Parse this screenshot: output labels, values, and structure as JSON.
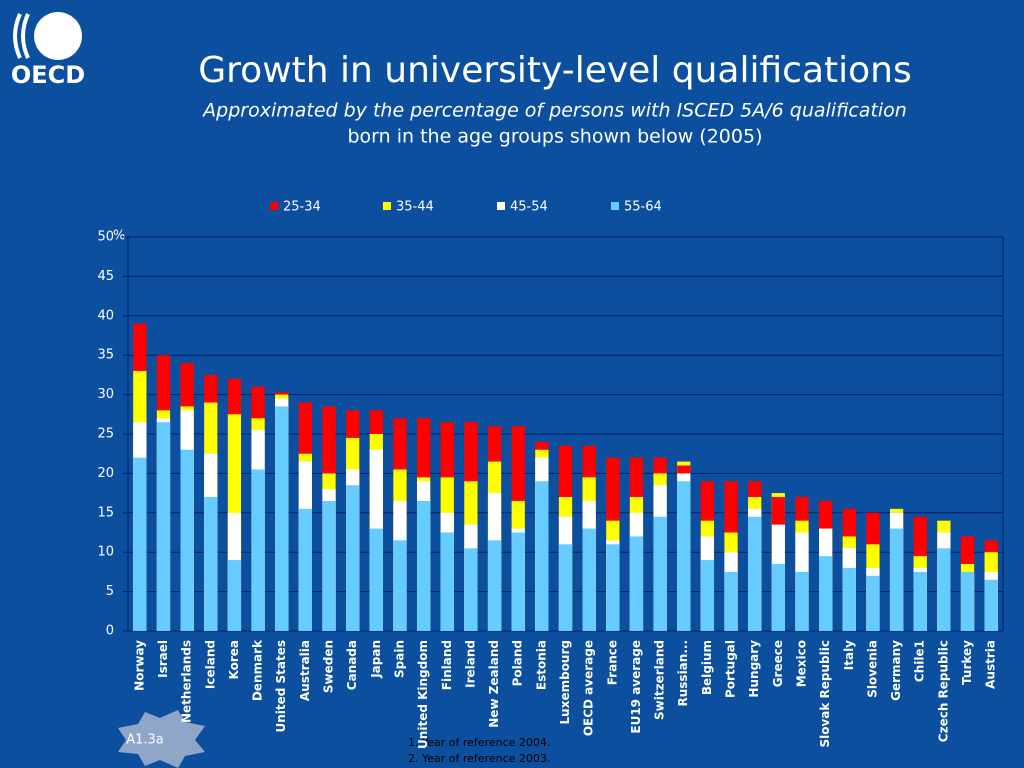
{
  "logo": "OECD",
  "badge": "A1.3a",
  "footnotes": [
    "1. Year of reference 2004.",
    "2. Year of reference 2003."
  ],
  "chart_data": {
    "type": "bar",
    "overlap": true,
    "title": "Growth in university-level qualifications",
    "subtitle": [
      "Approximated by the percentage of persons with ISCED 5A/6 qualification",
      "born in the age groups shown below (2005)"
    ],
    "y_unit": "%",
    "categories": [
      "Norway",
      "Israel",
      "Netherlands",
      "Iceland",
      "Korea",
      "Denmark",
      "United States",
      "Australia",
      "Sweden",
      "Canada",
      "Japan",
      "Spain",
      "United Kingdom",
      "Finland",
      "Ireland",
      "New Zealand",
      "Poland",
      "Estonia",
      "Luxembourg",
      "OECD average",
      "France",
      "EU19  average",
      "Switzerland",
      "Russian...",
      "Belgium",
      "Portugal",
      "Hungary",
      "Greece",
      "Mexico",
      "Slovak Republic",
      "Italy",
      "Slovenia",
      "Germany",
      "Chile1",
      "Czech Republic",
      "Turkey",
      "Austria"
    ],
    "series": [
      {
        "name": "25-34",
        "color": "#ff0000",
        "values": [
          39,
          35,
          34,
          32.5,
          32,
          31,
          30.3,
          29,
          28.5,
          28,
          28,
          27,
          27,
          26.5,
          26.5,
          26,
          26,
          24,
          23.5,
          23.5,
          22,
          22,
          22,
          21,
          19,
          19,
          19,
          17,
          17,
          16.5,
          15.5,
          15,
          15,
          14.5,
          14,
          12,
          11.5
        ]
      },
      {
        "name": "35-44",
        "color": "#ffff00",
        "values": [
          33,
          28,
          28.5,
          29,
          27.5,
          27,
          30,
          22.5,
          20,
          24.5,
          25,
          20.5,
          19.5,
          19.5,
          19,
          21.5,
          16.5,
          23,
          17,
          19.5,
          14,
          17,
          20,
          21.5,
          14,
          12.5,
          17,
          17.5,
          14,
          13,
          12,
          11,
          15.5,
          9.5,
          14,
          8.5,
          10
        ]
      },
      {
        "name": "45-54",
        "color": "#ffffff",
        "values": [
          26.5,
          27,
          28,
          22.5,
          15,
          25.5,
          29.5,
          21.5,
          18,
          20.5,
          23,
          16.5,
          19,
          15,
          13.5,
          17.5,
          13,
          22,
          14.5,
          16.5,
          11.5,
          15,
          18.5,
          20,
          12,
          10,
          15.5,
          13.5,
          12.5,
          13,
          10.5,
          8,
          15,
          8,
          12.5,
          7.5,
          7.5
        ]
      },
      {
        "name": "55-64",
        "color": "#66ccff",
        "values": [
          22,
          26.5,
          23,
          17,
          9,
          20.5,
          28.5,
          15.5,
          16.5,
          18.5,
          13,
          11.5,
          16.5,
          12.5,
          10.5,
          11.5,
          12.5,
          19,
          11,
          13,
          11,
          12,
          14.5,
          19,
          9,
          7.5,
          14.5,
          8.5,
          7.5,
          9.5,
          8,
          7,
          13,
          7.5,
          10.5,
          7.5,
          6.5
        ]
      }
    ],
    "ylim": [
      0,
      50
    ],
    "yticks": [
      0,
      5,
      10,
      15,
      20,
      25,
      30,
      35,
      40,
      45,
      50
    ],
    "grid": true,
    "legend": "top"
  }
}
